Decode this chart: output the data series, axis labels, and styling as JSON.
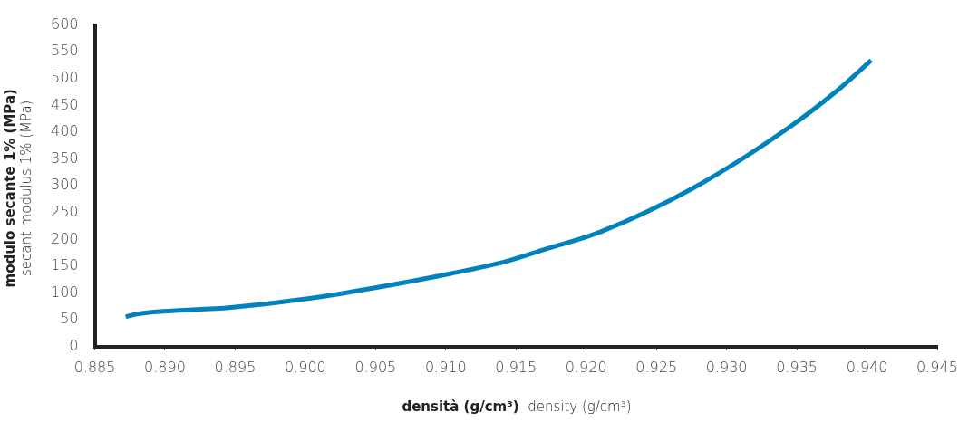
{
  "chart_data": {
    "type": "line",
    "xlabel": "densità (g/cm³)\ndensity (g/cm³)",
    "ylabel": "modulo secante 1% (MPa)\nsecant modulus 1% (MPa)",
    "xlim": [
      0.885,
      0.945
    ],
    "ylim": [
      0,
      600
    ],
    "xticks": [
      {
        "value": 0.885,
        "label": "0.885"
      },
      {
        "value": 0.89,
        "label": "0.890"
      },
      {
        "value": 0.895,
        "label": "0.895"
      },
      {
        "value": 0.9,
        "label": "0.900"
      },
      {
        "value": 0.905,
        "label": "0.905"
      },
      {
        "value": 0.91,
        "label": "0.910"
      },
      {
        "value": 0.915,
        "label": "0.915"
      },
      {
        "value": 0.92,
        "label": "0.920"
      },
      {
        "value": 0.925,
        "label": "0.925"
      },
      {
        "value": 0.93,
        "label": "0.930"
      },
      {
        "value": 0.935,
        "label": "0.935"
      },
      {
        "value": 0.94,
        "label": "0.940"
      },
      {
        "value": 0.945,
        "label": "0.945"
      }
    ],
    "yticks": [
      0,
      50,
      100,
      150,
      200,
      250,
      300,
      350,
      400,
      450,
      500,
      550,
      600
    ],
    "grid": false,
    "legend": false,
    "marker": "none",
    "line_style": "solid",
    "series": [
      {
        "color": "#0082bd",
        "x": [
          0.8872,
          0.888,
          0.8947,
          0.9003,
          0.9048,
          0.9103,
          0.9143,
          0.917,
          0.921,
          0.9277,
          0.9344,
          0.9378,
          0.9403
        ],
        "values": [
          56,
          61,
          73,
          90,
          109,
          136,
          159,
          181,
          214,
          297,
          408,
          476,
          534
        ]
      }
    ]
  }
}
